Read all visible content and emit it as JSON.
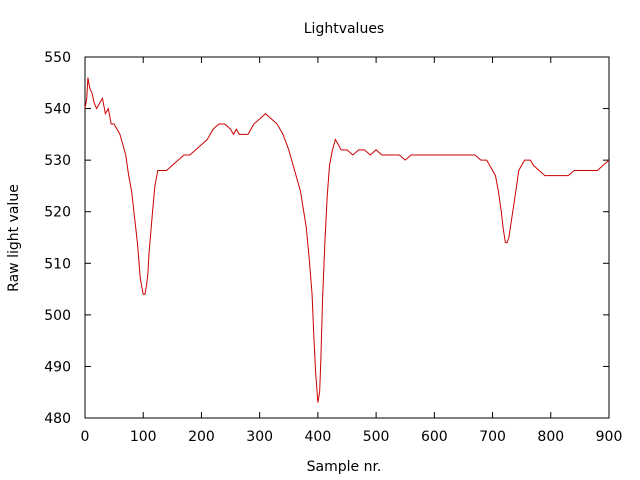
{
  "chart_data": {
    "type": "line",
    "title": "Lightvalues",
    "xlabel": "Sample nr.",
    "ylabel": "Raw light value",
    "xlim": [
      0,
      900
    ],
    "ylim": [
      480,
      550
    ],
    "xticks": [
      0,
      100,
      200,
      300,
      400,
      500,
      600,
      700,
      800,
      900
    ],
    "yticks": [
      480,
      490,
      500,
      510,
      520,
      530,
      540,
      550
    ],
    "grid": false,
    "legend": "none",
    "line_color": "#cc0000",
    "series": [
      {
        "x": [
          0,
          3,
          5,
          8,
          12,
          16,
          20,
          25,
          30,
          35,
          40,
          45,
          50,
          55,
          60,
          65,
          70,
          75,
          80,
          85,
          90,
          95,
          100,
          103,
          106,
          108,
          110,
          113,
          116,
          120,
          125,
          130,
          135,
          140,
          150,
          160,
          170,
          180,
          190,
          200,
          210,
          220,
          230,
          240,
          250,
          255,
          260,
          265,
          270,
          280,
          290,
          300,
          310,
          320,
          330,
          340,
          350,
          360,
          370,
          380,
          385,
          390,
          393,
          396,
          400,
          403,
          405,
          408,
          412,
          416,
          420,
          425,
          430,
          435,
          440,
          450,
          460,
          470,
          480,
          490,
          500,
          510,
          520,
          530,
          540,
          550,
          560,
          570,
          580,
          590,
          600,
          610,
          620,
          630,
          640,
          650,
          660,
          670,
          680,
          690,
          700,
          705,
          710,
          715,
          718,
          722,
          725,
          728,
          732,
          736,
          740,
          745,
          750,
          755,
          760,
          765,
          770,
          780,
          790,
          800,
          810,
          820,
          830,
          840,
          850,
          860,
          870,
          880,
          890,
          900
        ],
        "values": [
          540,
          542,
          546,
          544,
          543,
          541,
          540,
          541,
          542,
          539,
          540,
          537,
          537,
          536,
          535,
          533,
          531,
          527,
          524,
          519,
          514,
          507,
          504,
          504,
          506,
          508,
          512,
          516,
          520,
          525,
          528,
          528,
          528,
          528,
          529,
          530,
          531,
          531,
          532,
          533,
          534,
          536,
          537,
          537,
          536,
          535,
          536,
          535,
          535,
          535,
          537,
          538,
          539,
          538,
          537,
          535,
          532,
          528,
          524,
          517,
          511,
          504,
          496,
          489,
          483,
          485,
          491,
          503,
          514,
          523,
          529,
          532,
          534,
          533,
          532,
          532,
          531,
          532,
          532,
          531,
          532,
          531,
          531,
          531,
          531,
          530,
          531,
          531,
          531,
          531,
          531,
          531,
          531,
          531,
          531,
          531,
          531,
          531,
          530,
          530,
          528,
          527,
          524,
          520,
          517,
          514,
          514,
          515,
          518,
          521,
          524,
          528,
          529,
          530,
          530,
          530,
          529,
          528,
          527,
          527,
          527,
          527,
          527,
          528,
          528,
          528,
          528,
          528,
          529,
          530
        ]
      }
    ]
  }
}
